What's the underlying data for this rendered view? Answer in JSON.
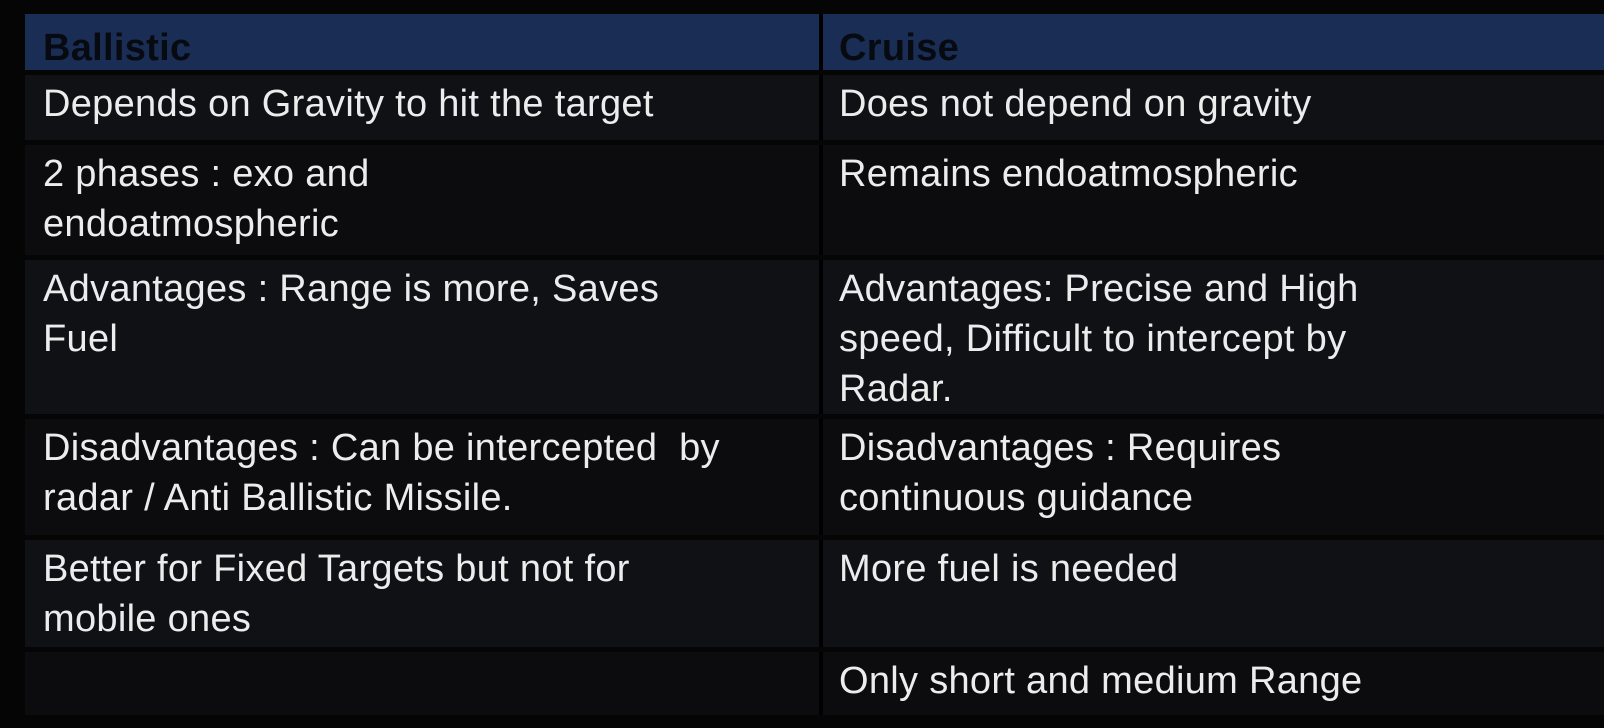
{
  "header": {
    "ballistic": "Ballistic",
    "cruise": "Cruise"
  },
  "rows": [
    {
      "ballistic": "Depends on Gravity to hit the target",
      "cruise": "Does not depend on gravity"
    },
    {
      "ballistic": "2 phases : exo and endoatmospheric",
      "cruise": "Remains endoatmospheric"
    },
    {
      "ballistic": "Advantages : Range is more, Saves Fuel",
      "cruise": "Advantages: Precise and High speed, Difficult to intercept by Radar."
    },
    {
      "ballistic": "Disadvantages : Can be intercepted  by radar / Anti Ballistic Missile.",
      "cruise": "Disadvantages : Requires continuous guidance"
    },
    {
      "ballistic": "Better for Fixed Targets but not for mobile ones",
      "cruise": "More fuel is needed"
    },
    {
      "ballistic": "",
      "cruise": "Only short and medium Range"
    }
  ],
  "colors": {
    "page_background": "#050506",
    "header_background": "#1a2d54",
    "header_text": "#070a10",
    "row_background_light": "#101115",
    "row_background_dark": "#0c0c0e",
    "body_text": "#ececec"
  }
}
